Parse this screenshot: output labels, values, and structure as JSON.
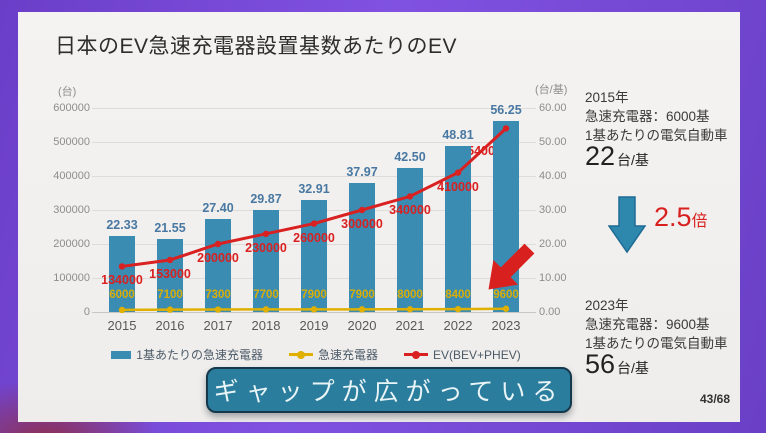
{
  "slide": {
    "title": "日本のEV急速充電器設置基数あたりのEV",
    "banner_text": "ギャップが広がっている",
    "page_number": "43/68"
  },
  "side_panel": {
    "top": {
      "year_line": "2015年",
      "charger_line": "急速充電器：6000基",
      "per_unit_line": "1基あたりの電気自動車",
      "value": "22",
      "unit": "台/基"
    },
    "multiplier": {
      "value": "2.5",
      "suffix": "倍"
    },
    "bottom": {
      "year_line": "2023年",
      "charger_line": "急速充電器：9600基",
      "per_unit_line": "1基あたりの電気自動車",
      "value": "56",
      "unit": "台/基"
    }
  },
  "colors": {
    "bar": "#3a8cb2",
    "bar_label": "#4878a2",
    "ev_line": "#d92121",
    "charger_line": "#dfb000",
    "charger_label": "#d9ae07",
    "banner_bg": "#2b7d9e",
    "banner_border": "#16384d",
    "blue_arrow": "#2e87ad",
    "accent_red": "#d8201f",
    "frame_purple": "#7a4fd8"
  },
  "chart_data": {
    "type": "bar",
    "title": "日本のEV急速充電器設置基数あたりのEV",
    "categories": [
      "2015",
      "2016",
      "2017",
      "2018",
      "2019",
      "2020",
      "2021",
      "2022",
      "2023"
    ],
    "series": [
      {
        "name": "1基あたりの急速充電器",
        "type": "bar",
        "axis": "right",
        "color": "#3a8cb2",
        "values": [
          22.33,
          21.55,
          27.4,
          29.87,
          32.91,
          37.97,
          42.5,
          48.81,
          56.25
        ]
      },
      {
        "name": "急速充電器",
        "type": "line",
        "axis": "left",
        "color": "#dfb000",
        "values": [
          6000,
          7100,
          7300,
          7700,
          7900,
          7900,
          8000,
          8400,
          9600
        ]
      },
      {
        "name": "EV(BEV+PHEV)",
        "type": "line",
        "axis": "left",
        "color": "#d92121",
        "values": [
          134000,
          153000,
          200000,
          230000,
          260000,
          300000,
          340000,
          410000,
          540000
        ]
      }
    ],
    "left_axis": {
      "label": "(台)",
      "min": 0,
      "max": 600000,
      "step": 100000,
      "format": "integer"
    },
    "right_axis": {
      "label": "(台/基)",
      "min": 0,
      "max": 60,
      "step": 10,
      "format": "2dp"
    },
    "legend_position": "bottom",
    "grid": true
  }
}
